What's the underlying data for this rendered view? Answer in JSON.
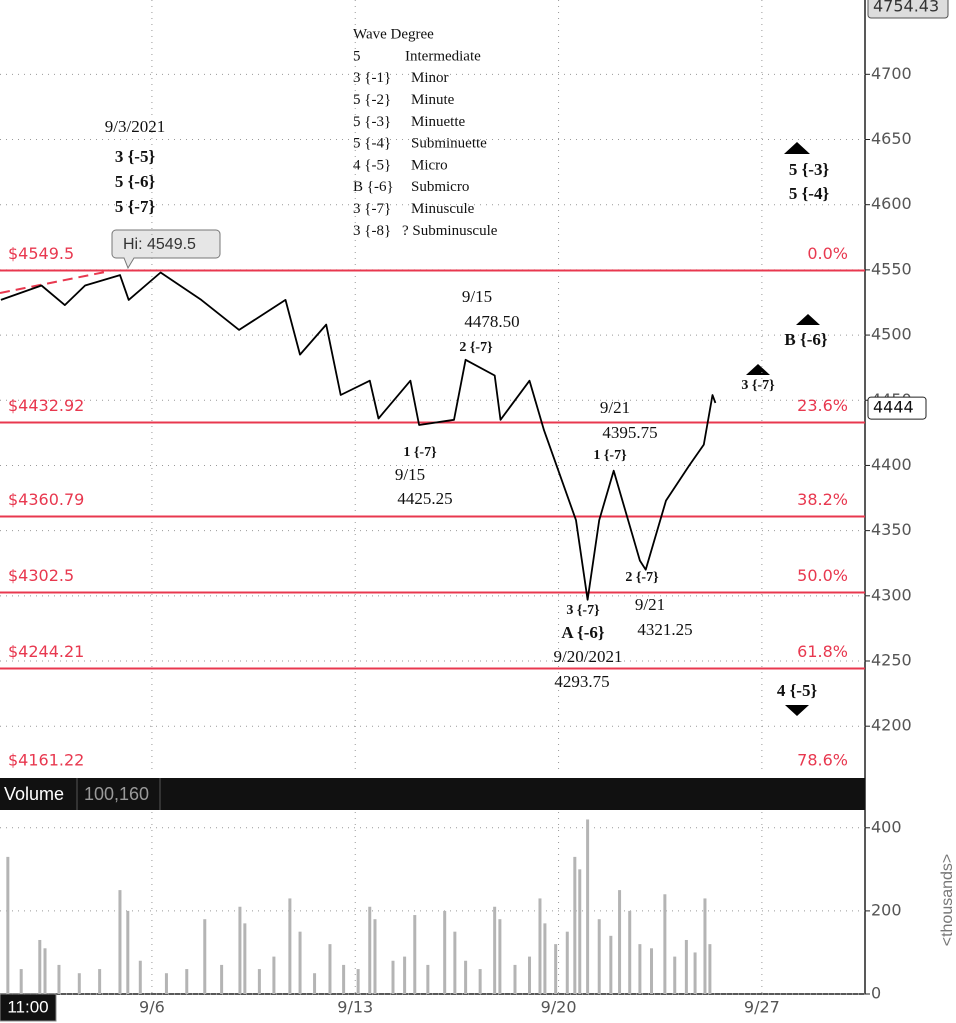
{
  "chart_data": [
    {
      "type": "line",
      "x": [
        0.8,
        2.2,
        3.0,
        3.7,
        4.9,
        5.2,
        6.3,
        7.7,
        9.0,
        10.6,
        11.1,
        12.0,
        12.5,
        13.5,
        13.8,
        14.9,
        15.2,
        16.4,
        16.8,
        17.8,
        18.0,
        19.0,
        19.5,
        20.6,
        21.0,
        21.4,
        21.9,
        22.8,
        23.0,
        23.7,
        24.5,
        25.0,
        25.3,
        25.4
      ],
      "values": [
        4527,
        4538,
        4523,
        4538,
        4546,
        4527,
        4548,
        4527,
        4504,
        4527,
        4485,
        4508,
        4454,
        4465,
        4436,
        4465,
        4431,
        4435,
        4481,
        4469,
        4435,
        4465,
        4427,
        4358,
        4297,
        4358,
        4396,
        4327,
        4320,
        4373,
        4400,
        4416,
        4454,
        4448
      ],
      "color": "#000000",
      "xlim": [
        0.77,
        30.55
      ],
      "ylim": [
        4166.4,
        4757
      ],
      "xticks": [
        {
          "value": 6,
          "label": "9/6"
        },
        {
          "value": 13,
          "label": "9/13"
        },
        {
          "value": 20,
          "label": "9/20"
        },
        {
          "value": 27,
          "label": "9/27"
        }
      ],
      "yticks": [
        4200,
        4250,
        4300,
        4350,
        4400,
        4450,
        4500,
        4550,
        4600,
        4650,
        4700
      ],
      "grid": true,
      "last_price": 4444,
      "high_price": 4754.43,
      "hi_label": "Hi: 4549.5",
      "cursor_time": "11:00",
      "fib_levels": [
        {
          "value": 4549.5,
          "label": "$4549.5",
          "pct": {
            "value": 0,
            "label": "0.0%"
          }
        },
        {
          "value": 4432.92,
          "label": "$4432.92",
          "pct": {
            "value": 23.6,
            "label": "23.6%"
          }
        },
        {
          "value": 4360.79,
          "label": "$4360.79",
          "pct": {
            "value": 38.2,
            "label": "38.2%"
          }
        },
        {
          "value": 4302.5,
          "label": "$4302.5",
          "pct": {
            "value": 50,
            "label": "50.0%"
          }
        },
        {
          "value": 4244.21,
          "label": "$4244.21",
          "pct": {
            "value": 61.8,
            "label": "61.8%"
          }
        },
        {
          "value": 4161.22,
          "label": "$4161.22",
          "pct": {
            "value": 78.6,
            "label": "78.6%"
          }
        }
      ],
      "fib_color": "#e8384f",
      "wave_degree": {
        "title": "Wave Degree",
        "rows": [
          [
            "5",
            "Intermediate"
          ],
          [
            "3 {-1}",
            "Minor"
          ],
          [
            "5 {-2}",
            "Minute"
          ],
          [
            "5 {-3}",
            "Minuette"
          ],
          [
            "5 {-4}",
            "Subminuette"
          ],
          [
            "4 {-5}",
            "Micro"
          ],
          [
            "B {-6}",
            "Submicro"
          ],
          [
            "3 {-7}",
            "Minuscule"
          ],
          [
            "3 {-8}",
            "? Subminuscule"
          ]
        ]
      },
      "annotations": [
        "9/3/2021",
        "3 {-5}",
        "5 {-6}",
        "5 {-7}",
        "9/15",
        "4478.50",
        "2 {-7}",
        "1 {-7}",
        "9/15",
        "4425.25",
        "9/21",
        "4395.75",
        "1 {-7}",
        "3 {-7}",
        "A {-6}",
        "9/20/2021",
        "4293.75",
        "2 {-7}",
        "9/21",
        "4321.25",
        "3 {-7}",
        "B {-6}",
        "5 {-3}",
        "5 {-4}",
        "4 {-5}"
      ]
    },
    {
      "type": "bar",
      "title": "Volume",
      "subtitle": "100,160",
      "y_label": "<thousands>",
      "x": [
        1.04,
        1.5,
        2.14,
        2.32,
        2.8,
        3.5,
        4.2,
        4.9,
        5.17,
        5.6,
        6.5,
        7.2,
        7.82,
        8.4,
        9.03,
        9.2,
        9.7,
        10.2,
        10.75,
        11.1,
        11.6,
        12.13,
        12.6,
        13.1,
        13.5,
        13.68,
        14.3,
        14.7,
        15.05,
        15.5,
        16.08,
        16.43,
        16.8,
        17.3,
        17.8,
        17.98,
        18.5,
        19.0,
        19.36,
        19.53,
        19.9,
        20.3,
        20.56,
        20.73,
        21.0,
        21.4,
        21.8,
        22.1,
        22.45,
        22.8,
        23.2,
        23.66,
        24.0,
        24.4,
        24.7,
        25.04,
        25.21
      ],
      "values": [
        330,
        60,
        130,
        110,
        70,
        50,
        60,
        250,
        200,
        80,
        50,
        60,
        180,
        70,
        210,
        170,
        60,
        90,
        230,
        150,
        50,
        120,
        70,
        60,
        210,
        180,
        80,
        90,
        190,
        70,
        200,
        150,
        80,
        60,
        210,
        180,
        70,
        90,
        230,
        170,
        120,
        150,
        330,
        300,
        420,
        180,
        140,
        250,
        200,
        120,
        110,
        240,
        90,
        130,
        100,
        230,
        120
      ],
      "color": "#b4b4b4",
      "ylim": [
        0,
        438
      ],
      "yticks": [
        0,
        200,
        400
      ],
      "grid": true
    }
  ]
}
